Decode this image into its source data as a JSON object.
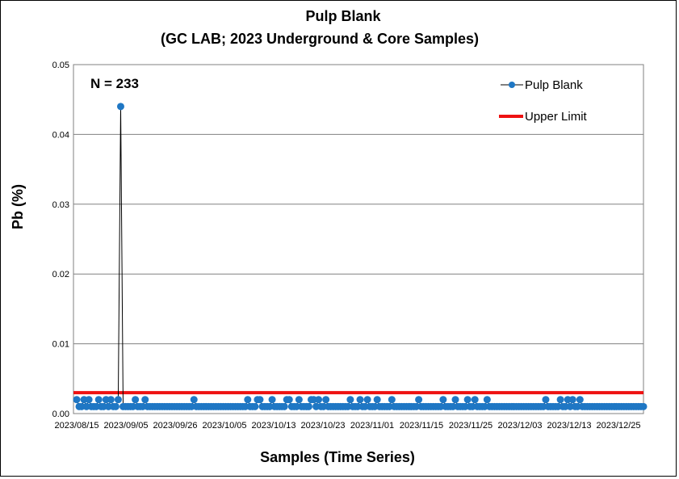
{
  "chart_data": {
    "type": "line",
    "title": "Pulp Blank",
    "subtitle": "(GC LAB; 2023 Underground & Core Samples)",
    "xlabel": "Samples (Time Series)",
    "ylabel": "Pb (%)",
    "annotation": "N = 233",
    "ylim": [
      0,
      0.05
    ],
    "yticks": [
      "0.00",
      "0.01",
      "0.02",
      "0.03",
      "0.04",
      "0.05"
    ],
    "xtick_labels": [
      "2023/08/15",
      "2023/09/05",
      "2023/09/26",
      "2023/10/05",
      "2023/10/13",
      "2023/10/23",
      "2023/11/01",
      "2023/11/15",
      "2023/11/25",
      "2023/12/03",
      "2023/12/13",
      "2023/12/25"
    ],
    "grid": true,
    "legend_position": "top-right",
    "n": 233,
    "series": [
      {
        "name": "Pulp Blank",
        "color": "#1f77c4",
        "base_value": 0.001,
        "exceptions": [
          {
            "index": 0,
            "value": 0.002
          },
          {
            "index": 3,
            "value": 0.002
          },
          {
            "index": 5,
            "value": 0.002
          },
          {
            "index": 9,
            "value": 0.002
          },
          {
            "index": 12,
            "value": 0.002
          },
          {
            "index": 14,
            "value": 0.002
          },
          {
            "index": 17,
            "value": 0.002
          },
          {
            "index": 18,
            "value": 0.044
          },
          {
            "index": 24,
            "value": 0.002
          },
          {
            "index": 28,
            "value": 0.002
          },
          {
            "index": 48,
            "value": 0.002
          },
          {
            "index": 70,
            "value": 0.002
          },
          {
            "index": 74,
            "value": 0.002
          },
          {
            "index": 75,
            "value": 0.002
          },
          {
            "index": 80,
            "value": 0.002
          },
          {
            "index": 86,
            "value": 0.002
          },
          {
            "index": 87,
            "value": 0.002
          },
          {
            "index": 91,
            "value": 0.002
          },
          {
            "index": 96,
            "value": 0.002
          },
          {
            "index": 97,
            "value": 0.002
          },
          {
            "index": 99,
            "value": 0.002
          },
          {
            "index": 102,
            "value": 0.002
          },
          {
            "index": 112,
            "value": 0.002
          },
          {
            "index": 116,
            "value": 0.002
          },
          {
            "index": 119,
            "value": 0.002
          },
          {
            "index": 123,
            "value": 0.002
          },
          {
            "index": 129,
            "value": 0.002
          },
          {
            "index": 140,
            "value": 0.002
          },
          {
            "index": 150,
            "value": 0.002
          },
          {
            "index": 155,
            "value": 0.002
          },
          {
            "index": 160,
            "value": 0.002
          },
          {
            "index": 163,
            "value": 0.002
          },
          {
            "index": 168,
            "value": 0.002
          },
          {
            "index": 192,
            "value": 0.002
          },
          {
            "index": 198,
            "value": 0.002
          },
          {
            "index": 201,
            "value": 0.002
          },
          {
            "index": 203,
            "value": 0.002
          },
          {
            "index": 206,
            "value": 0.002
          }
        ]
      },
      {
        "name": "Upper Limit",
        "color": "#ee1111",
        "value": 0.003
      }
    ]
  }
}
